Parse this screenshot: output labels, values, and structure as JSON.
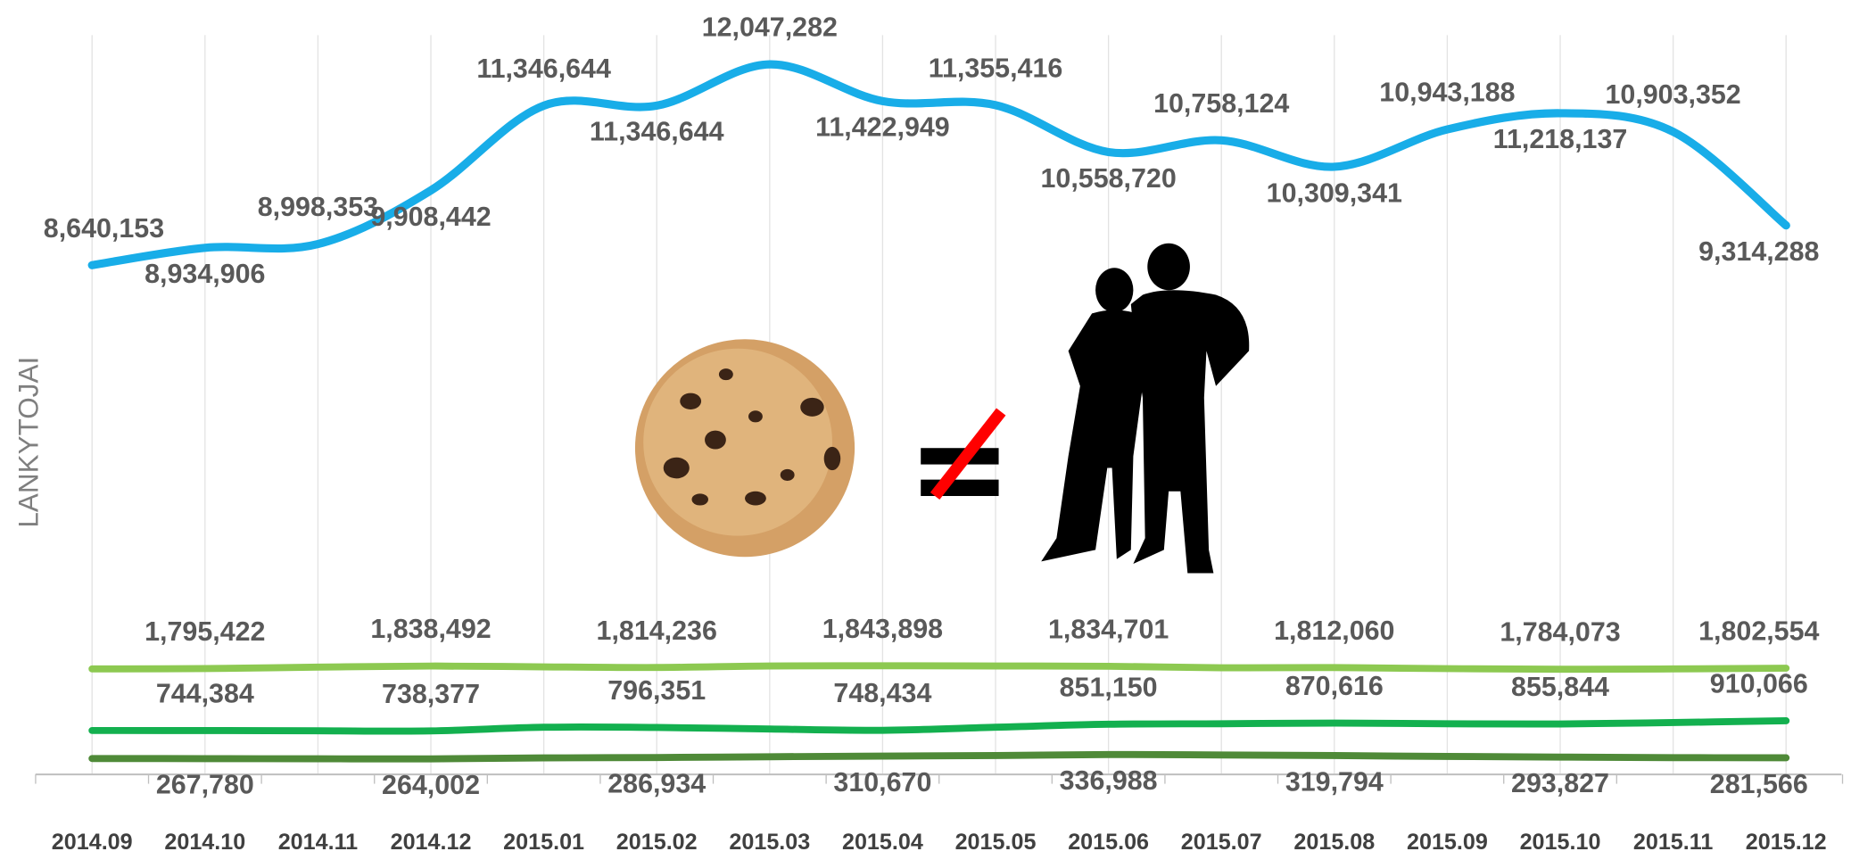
{
  "chart_data": {
    "type": "line",
    "ylabel": "LANKYTOJAI",
    "categories": [
      "2014.09",
      "2014.10",
      "2014.11",
      "2014.12",
      "2015.01",
      "2015.02",
      "2015.03",
      "2015.04",
      "2015.05",
      "2015.06",
      "2015.07",
      "2015.08",
      "2015.09",
      "2015.10",
      "2015.11",
      "2015.12"
    ],
    "ylim": [
      0,
      13000000
    ],
    "series": [
      {
        "color": "#18ade8",
        "label_side": "alternate",
        "values": [
          8640153,
          8934906,
          8998353,
          9908442,
          11346644,
          11346644,
          12047282,
          11422949,
          11355416,
          10558720,
          10758124,
          10309341,
          10943188,
          11218137,
          10903352,
          9314288
        ],
        "value_labels": [
          "8,640,153",
          "8,934,906",
          "8,998,353",
          "9,908,442",
          "11,346,644",
          "11,346,644",
          "12,047,282",
          "11,422,949",
          "11,355,416",
          "10,558,720",
          "10,758,124",
          "10,309,341",
          "10,943,188",
          "11,218,137",
          "10,903,352",
          "9,314,288"
        ]
      },
      {
        "color": "#8dc951",
        "label_side": "above",
        "values": [
          1790000,
          1795422,
          1820000,
          1838492,
          1825000,
          1814236,
          1840000,
          1843898,
          1840000,
          1834701,
          1810000,
          1812060,
          1795000,
          1784073,
          1790000,
          1802554
        ],
        "value_labels": [
          null,
          "1,795,422",
          null,
          "1,838,492",
          null,
          "1,814,236",
          null,
          "1,843,898",
          null,
          "1,834,701",
          null,
          "1,812,060",
          null,
          "1,784,073",
          null,
          "1,802,554"
        ]
      },
      {
        "color": "#13b04f",
        "label_side": "above",
        "values": [
          745000,
          744384,
          740000,
          738377,
          800000,
          796351,
          770000,
          748434,
          800000,
          851150,
          860000,
          870616,
          860000,
          855844,
          880000,
          910066
        ],
        "value_labels": [
          null,
          "744,384",
          null,
          "738,377",
          null,
          "796,351",
          null,
          "748,434",
          null,
          "851,150",
          null,
          "870,616",
          null,
          "855,844",
          null,
          "910,066"
        ]
      },
      {
        "color": "#4f8a38",
        "label_side": "below",
        "values": [
          270000,
          267780,
          265000,
          264002,
          280000,
          286934,
          300000,
          310670,
          320000,
          336988,
          330000,
          319794,
          305000,
          293827,
          285000,
          281566
        ],
        "value_labels": [
          null,
          "267,780",
          null,
          "264,002",
          null,
          "286,934",
          null,
          "310,670",
          null,
          "336,988",
          null,
          "319,794",
          null,
          "293,827",
          null,
          "281,566"
        ]
      }
    ]
  }
}
